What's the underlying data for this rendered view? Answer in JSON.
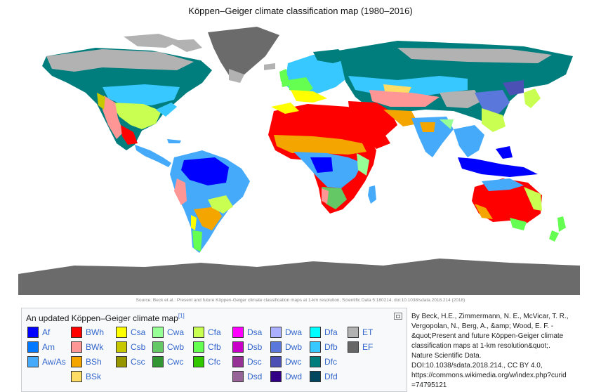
{
  "title": "Köppen–Geiger climate classification map (1980–2016)",
  "source": "Source: Beck et al.: Present and future Köppen-Geiger climate classification maps at 1-km resolution, Scientific Data 5:180214, doi:10.1038/sdata.2018.214 (2018)",
  "legend": {
    "caption": "An updated Köppen–Geiger climate map",
    "ref": "[1]",
    "columns": [
      [
        {
          "code": "Af",
          "color": "#0000fe"
        },
        {
          "code": "Am",
          "color": "#0078ff"
        },
        {
          "code": "Aw/As",
          "color": "#46aafa"
        }
      ],
      [
        {
          "code": "BWh",
          "color": "#ff0000"
        },
        {
          "code": "BWk",
          "color": "#ff9696"
        },
        {
          "code": "BSh",
          "color": "#f5a500"
        },
        {
          "code": "BSk",
          "color": "#ffdc64"
        }
      ],
      [
        {
          "code": "Csa",
          "color": "#ffff00"
        },
        {
          "code": "Csb",
          "color": "#c8c800"
        },
        {
          "code": "Csc",
          "color": "#969600"
        }
      ],
      [
        {
          "code": "Cwa",
          "color": "#96ff96"
        },
        {
          "code": "Cwb",
          "color": "#64c864"
        },
        {
          "code": "Cwc",
          "color": "#329632"
        }
      ],
      [
        {
          "code": "Cfa",
          "color": "#c8ff50"
        },
        {
          "code": "Cfb",
          "color": "#64ff50"
        },
        {
          "code": "Cfc",
          "color": "#32c800"
        }
      ],
      [
        {
          "code": "Dsa",
          "color": "#ff00ff"
        },
        {
          "code": "Dsb",
          "color": "#c800c8"
        },
        {
          "code": "Dsc",
          "color": "#963296"
        },
        {
          "code": "Dsd",
          "color": "#966496"
        }
      ],
      [
        {
          "code": "Dwa",
          "color": "#aaafff"
        },
        {
          "code": "Dwb",
          "color": "#5a78dc"
        },
        {
          "code": "Dwc",
          "color": "#4b50b4"
        },
        {
          "code": "Dwd",
          "color": "#320087"
        }
      ],
      [
        {
          "code": "Dfa",
          "color": "#00ffff"
        },
        {
          "code": "Dfb",
          "color": "#37c8ff"
        },
        {
          "code": "Dfc",
          "color": "#007d7d"
        },
        {
          "code": "Dfd",
          "color": "#00465f"
        }
      ],
      [
        {
          "code": "ET",
          "color": "#b2b2b2"
        },
        {
          "code": "EF",
          "color": "#666666"
        }
      ]
    ]
  },
  "attribution": [
    "By Beck, H.E., Zimmermann, N. E., McVicar, T. R.,",
    "Vergopolan, N., Berg, A., &amp; Wood, E. F. -",
    "&quot;Present and future Köppen-Geiger climate",
    "classification maps at 1-km resolution&quot;.",
    "Nature Scientific Data.",
    "DOI:10.1038/sdata.2018.214., CC BY 4.0,",
    "https://commons.wikimedia.org/w/index.php?curid",
    "=74795121"
  ]
}
